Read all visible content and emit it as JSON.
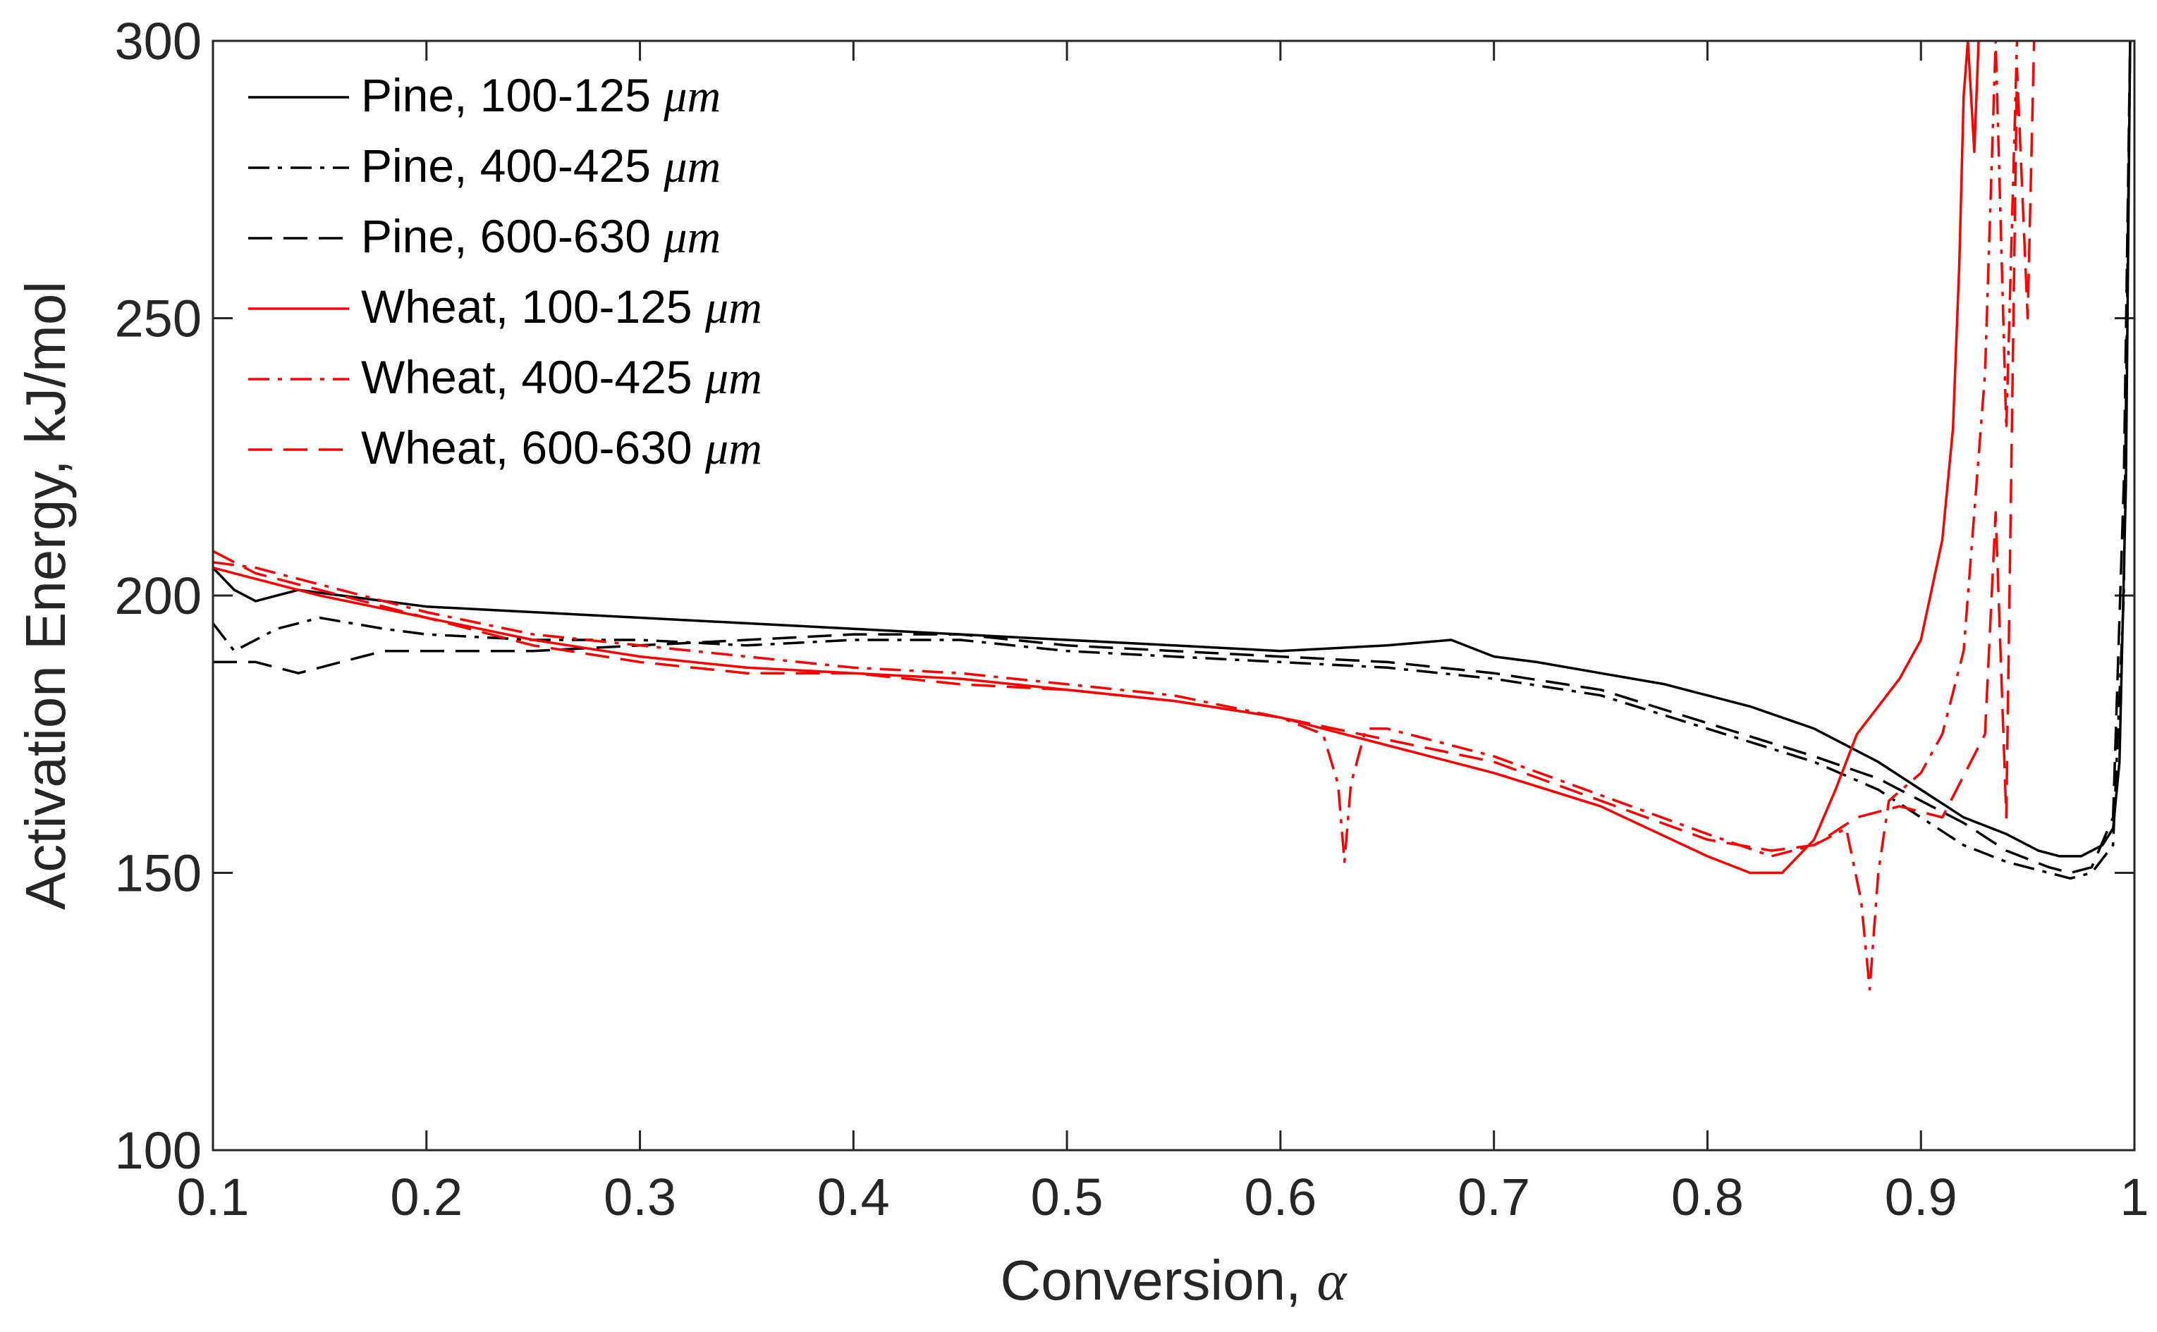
{
  "chart_data": {
    "type": "line",
    "title": "",
    "xlabel": "Conversion, ",
    "xlabel_symbol": "α",
    "ylabel": "Activation Energy, kJ/mol",
    "xlim": [
      0.1,
      1.0
    ],
    "ylim": [
      100,
      300
    ],
    "xticks": [
      0.1,
      0.2,
      0.3,
      0.4,
      0.5,
      0.6,
      0.7,
      0.8,
      0.9,
      1.0
    ],
    "xtick_labels": [
      "0.1",
      "0.2",
      "0.3",
      "0.4",
      "0.5",
      "0.6",
      "0.7",
      "0.8",
      "0.9",
      "1"
    ],
    "yticks": [
      100,
      150,
      200,
      250,
      300
    ],
    "ytick_labels": [
      "100",
      "150",
      "200",
      "250",
      "300"
    ],
    "grid": false,
    "legend_position": "top-left",
    "colors": {
      "black": "#000000",
      "red": "#ff0000",
      "axis": "#262626"
    },
    "series": [
      {
        "name": "Pine, 100-125 μm",
        "legend_prefix": "Pine, 100-125 ",
        "legend_unit": "μm",
        "color": "#000000",
        "dash": "solid",
        "x": [
          0.1,
          0.11,
          0.12,
          0.14,
          0.16,
          0.18,
          0.2,
          0.25,
          0.3,
          0.35,
          0.4,
          0.45,
          0.5,
          0.55,
          0.6,
          0.65,
          0.68,
          0.7,
          0.72,
          0.75,
          0.78,
          0.8,
          0.82,
          0.85,
          0.88,
          0.9,
          0.92,
          0.94,
          0.955,
          0.965,
          0.975,
          0.985,
          0.99,
          0.993,
          0.996,
          0.998
        ],
        "y": [
          205,
          201,
          199,
          201,
          200,
          199,
          198,
          197,
          196,
          195,
          194,
          193,
          192,
          191,
          190,
          191,
          192,
          189,
          188,
          186,
          184,
          182,
          180,
          176,
          170,
          165,
          160,
          157,
          154,
          153,
          153,
          155,
          158,
          170,
          220,
          300
        ]
      },
      {
        "name": "Pine, 400-425 μm",
        "legend_prefix": "Pine, 400-425 ",
        "legend_unit": "μm",
        "color": "#000000",
        "dash": "dashdot",
        "x": [
          0.1,
          0.11,
          0.13,
          0.15,
          0.18,
          0.2,
          0.25,
          0.3,
          0.35,
          0.4,
          0.45,
          0.5,
          0.55,
          0.6,
          0.65,
          0.7,
          0.75,
          0.8,
          0.85,
          0.88,
          0.9,
          0.92,
          0.94,
          0.96,
          0.97,
          0.98,
          0.99,
          0.995,
          0.998
        ],
        "y": [
          195,
          190,
          194,
          196,
          194,
          193,
          192,
          192,
          191,
          192,
          192,
          190,
          189,
          188,
          187,
          185,
          182,
          176,
          170,
          165,
          160,
          155,
          152,
          150,
          149,
          150,
          155,
          200,
          300
        ]
      },
      {
        "name": "Pine, 600-630 μm",
        "legend_prefix": "Pine, 600-630 ",
        "legend_unit": "μm",
        "color": "#000000",
        "dash": "dashed",
        "x": [
          0.1,
          0.12,
          0.14,
          0.16,
          0.18,
          0.2,
          0.25,
          0.3,
          0.35,
          0.4,
          0.45,
          0.5,
          0.55,
          0.6,
          0.65,
          0.7,
          0.75,
          0.8,
          0.85,
          0.88,
          0.9,
          0.92,
          0.94,
          0.96,
          0.97,
          0.98,
          0.99,
          0.995,
          0.998
        ],
        "y": [
          188,
          188,
          186,
          188,
          190,
          190,
          190,
          191,
          192,
          193,
          193,
          191,
          190,
          189,
          188,
          186,
          183,
          177,
          171,
          167,
          163,
          159,
          154,
          151,
          150,
          151,
          160,
          220,
          300
        ]
      },
      {
        "name": "Wheat, 100-125 μm",
        "legend_prefix": "Wheat, 100-125 ",
        "legend_unit": "μm",
        "color": "#ff0000",
        "dash": "solid",
        "x": [
          0.1,
          0.12,
          0.15,
          0.2,
          0.25,
          0.3,
          0.35,
          0.4,
          0.45,
          0.5,
          0.55,
          0.6,
          0.65,
          0.7,
          0.75,
          0.8,
          0.82,
          0.835,
          0.85,
          0.86,
          0.87,
          0.88,
          0.89,
          0.9,
          0.91,
          0.915,
          0.918,
          0.92,
          0.922,
          0.925,
          0.927
        ],
        "y": [
          205,
          203,
          200,
          196,
          192,
          189,
          187,
          186,
          185,
          183,
          181,
          178,
          173,
          168,
          162,
          153,
          150,
          150,
          156,
          165,
          175,
          180,
          185,
          192,
          210,
          230,
          260,
          290,
          300,
          280,
          300
        ]
      },
      {
        "name": "Wheat, 400-425 μm",
        "legend_prefix": "Wheat, 400-425 ",
        "legend_unit": "μm",
        "color": "#ff0000",
        "dash": "dashdot",
        "x": [
          0.1,
          0.12,
          0.15,
          0.2,
          0.25,
          0.3,
          0.35,
          0.4,
          0.45,
          0.5,
          0.55,
          0.6,
          0.62,
          0.627,
          0.63,
          0.633,
          0.64,
          0.65,
          0.7,
          0.75,
          0.8,
          0.83,
          0.85,
          0.865,
          0.872,
          0.876,
          0.88,
          0.885,
          0.9,
          0.91,
          0.92,
          0.93,
          0.935,
          0.94,
          0.945
        ],
        "y": [
          206,
          205,
          202,
          197,
          193,
          191,
          189,
          187,
          186,
          184,
          182,
          178,
          175,
          166,
          152,
          166,
          176,
          176,
          171,
          164,
          157,
          153,
          155,
          158,
          145,
          129,
          150,
          163,
          168,
          175,
          190,
          240,
          300,
          230,
          300
        ]
      },
      {
        "name": "Wheat, 600-630 μm",
        "legend_prefix": "Wheat, 600-630 ",
        "legend_unit": "μm",
        "color": "#ff0000",
        "dash": "dashed",
        "x": [
          0.1,
          0.12,
          0.15,
          0.2,
          0.25,
          0.3,
          0.35,
          0.4,
          0.45,
          0.5,
          0.55,
          0.6,
          0.65,
          0.7,
          0.75,
          0.8,
          0.83,
          0.85,
          0.87,
          0.89,
          0.91,
          0.93,
          0.935,
          0.94,
          0.945,
          0.95,
          0.953
        ],
        "y": [
          208,
          204,
          201,
          196,
          191,
          188,
          186,
          186,
          184,
          183,
          181,
          178,
          174,
          170,
          163,
          156,
          154,
          155,
          160,
          162,
          160,
          175,
          215,
          160,
          295,
          250,
          300
        ]
      }
    ]
  }
}
